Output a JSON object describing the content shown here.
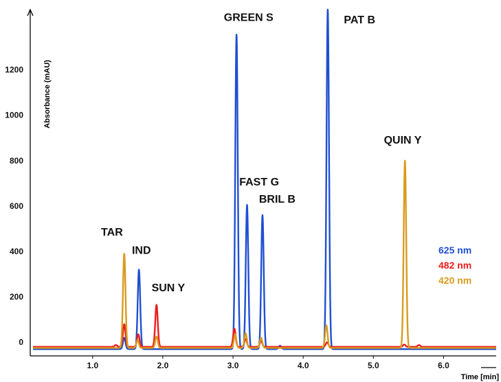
{
  "chart_data": {
    "type": "line",
    "title": "",
    "xlabel": "Time [min]",
    "ylabel": "Absorbance (mAU)",
    "xlim": [
      0.15,
      6.75
    ],
    "ylim": [
      -75,
      1465
    ],
    "x_ticks": [
      1.0,
      2.0,
      3.0,
      4.0,
      5.0,
      6.0
    ],
    "x_tick_labels": [
      "1.0",
      "2.0",
      "3.0",
      "4.0",
      "5.0",
      "6.0"
    ],
    "y_ticks": [
      0,
      200,
      400,
      600,
      800,
      1000,
      1200
    ],
    "y_tick_labels": [
      "0",
      "200",
      "400",
      "600",
      "800",
      "1000",
      "1200"
    ],
    "grid": false,
    "legend_position": "right",
    "baseline": -25,
    "series": [
      {
        "name": "625 nm",
        "color": "#1f4fd1",
        "baseline": -30,
        "peaks": [
          {
            "x": 1.45,
            "y": 20
          },
          {
            "x": 1.66,
            "y": 320
          },
          {
            "x": 3.05,
            "y": 1355
          },
          {
            "x": 3.2,
            "y": 605
          },
          {
            "x": 3.42,
            "y": 560
          },
          {
            "x": 3.67,
            "y": -15
          },
          {
            "x": 4.35,
            "y": 1465
          }
        ]
      },
      {
        "name": "482 nm",
        "color": "#ee1c1c",
        "baseline": -20,
        "peaks": [
          {
            "x": 1.33,
            "y": -12
          },
          {
            "x": 1.45,
            "y": 80
          },
          {
            "x": 1.65,
            "y": 35
          },
          {
            "x": 1.91,
            "y": 165
          },
          {
            "x": 3.02,
            "y": 60
          },
          {
            "x": 3.18,
            "y": 15
          },
          {
            "x": 3.4,
            "y": 5
          },
          {
            "x": 4.34,
            "y": 0
          },
          {
            "x": 5.44,
            "y": -10
          },
          {
            "x": 5.65,
            "y": -12
          }
        ]
      },
      {
        "name": "420 nm",
        "color": "#d99b1c",
        "baseline": -25,
        "peaks": [
          {
            "x": 1.45,
            "y": 390
          },
          {
            "x": 1.64,
            "y": 10
          },
          {
            "x": 1.91,
            "y": 25
          },
          {
            "x": 3.03,
            "y": 35
          },
          {
            "x": 3.18,
            "y": 40
          },
          {
            "x": 3.4,
            "y": 20
          },
          {
            "x": 4.33,
            "y": 75
          },
          {
            "x": 5.45,
            "y": 800
          }
        ]
      }
    ],
    "annotations": [
      {
        "text": "TAR",
        "x": 1.12,
        "y": 470
      },
      {
        "text": "IND",
        "x": 1.56,
        "y": 390
      },
      {
        "text": "SUN Y",
        "x": 1.84,
        "y": 225
      },
      {
        "text": "GREEN S",
        "x": 2.87,
        "y": 1415
      },
      {
        "text": "FAST G",
        "x": 3.09,
        "y": 690
      },
      {
        "text": "BRIL B",
        "x": 3.37,
        "y": 615
      },
      {
        "text": "PAT B",
        "x": 4.58,
        "y": 1405
      },
      {
        "text": "QUIN Y",
        "x": 5.15,
        "y": 875
      }
    ]
  }
}
